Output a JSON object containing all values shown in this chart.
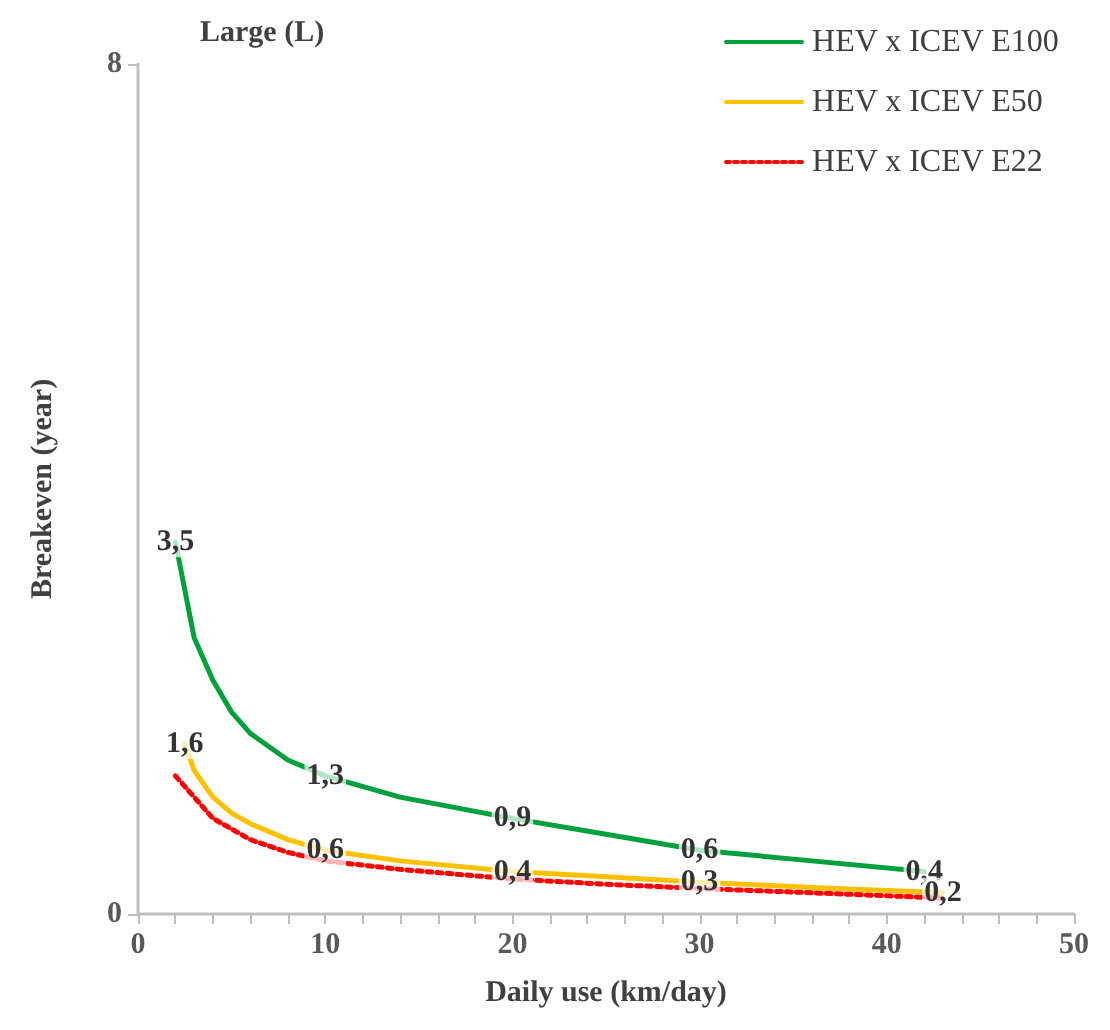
{
  "chart_data": {
    "type": "line",
    "title": "Large (L)",
    "xlabel": "Daily use (km/day)",
    "ylabel": "Breakeven (year)",
    "xlim": [
      0,
      50
    ],
    "xticks": [
      0,
      {
        "value": 2,
        "label": null
      },
      {
        "value": 4,
        "label": null
      },
      {
        "value": 6,
        "label": null
      },
      {
        "value": 8,
        "label": null
      },
      10,
      {
        "value": 12,
        "label": null
      },
      {
        "value": 14,
        "label": null
      },
      {
        "value": 16,
        "label": null
      },
      {
        "value": 18,
        "label": null
      },
      20,
      {
        "value": 22,
        "label": null
      },
      {
        "value": 24,
        "label": null
      },
      {
        "value": 26,
        "label": null
      },
      {
        "value": 28,
        "label": null
      },
      30,
      {
        "value": 32,
        "label": null
      },
      {
        "value": 34,
        "label": null
      },
      {
        "value": 36,
        "label": null
      },
      {
        "value": 38,
        "label": null
      },
      40,
      {
        "value": 42,
        "label": null
      },
      {
        "value": 44,
        "label": null
      },
      {
        "value": 46,
        "label": null
      },
      {
        "value": 48,
        "label": null
      },
      50
    ],
    "ylim": [
      0,
      8
    ],
    "yticks": [
      0,
      8
    ],
    "grid": false,
    "legend": "top right",
    "marker": "none",
    "series": [
      {
        "name": "HEV x ICEV E100",
        "color": "#00a03c",
        "line_style": "solid",
        "x": [
          2,
          3,
          4,
          5,
          6,
          8,
          10,
          14,
          20,
          25,
          30,
          36,
          42
        ],
        "values": [
          3.5,
          2.6,
          2.2,
          1.9,
          1.7,
          1.45,
          1.3,
          1.1,
          0.9,
          0.75,
          0.6,
          0.5,
          0.4
        ],
        "value_labels": [
          "3,5",
          null,
          null,
          null,
          null,
          null,
          "1,3",
          null,
          "0,9",
          null,
          "0,6",
          null,
          "0,4"
        ]
      },
      {
        "name": "HEV x ICEV E50",
        "color": "#ffc000",
        "line_style": "solid",
        "x": [
          2.5,
          3,
          4,
          5,
          6,
          8,
          10,
          14,
          20,
          25,
          30,
          36,
          43
        ],
        "values": [
          1.6,
          1.35,
          1.1,
          0.95,
          0.85,
          0.7,
          0.6,
          0.5,
          0.4,
          0.35,
          0.3,
          0.25,
          0.2
        ],
        "value_labels": [
          "1,6",
          null,
          null,
          null,
          null,
          null,
          "0,6",
          null,
          "0,4",
          null,
          "0,3",
          null,
          "0,2"
        ]
      },
      {
        "name": "HEV x ICEV E22",
        "color": "#ff0000",
        "line_style": "dotted",
        "x": [
          2,
          3,
          4,
          5,
          6,
          8,
          10,
          14,
          20,
          25,
          30,
          36,
          43
        ],
        "values": [
          1.3,
          1.1,
          0.9,
          0.8,
          0.7,
          0.58,
          0.5,
          0.42,
          0.33,
          0.28,
          0.24,
          0.2,
          0.15
        ]
      }
    ]
  }
}
